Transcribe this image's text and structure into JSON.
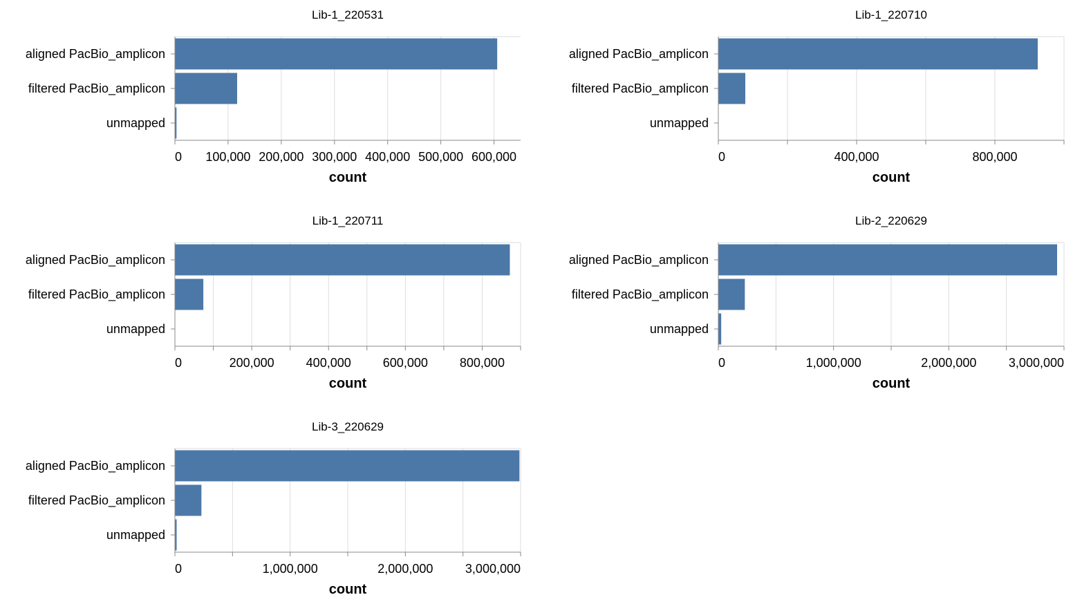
{
  "chart_data": [
    {
      "type": "bar",
      "orientation": "horizontal",
      "title": "Lib-1_220531",
      "categories": [
        "aligned PacBio_amplicon",
        "filtered PacBio_amplicon",
        "unmapped"
      ],
      "values": [
        606000,
        117000,
        3000
      ],
      "xlabel": "count",
      "xlim": [
        0,
        650000
      ],
      "xticks": [
        0,
        100000,
        200000,
        300000,
        400000,
        500000,
        600000
      ],
      "xtick_labels": [
        "0",
        "100,000",
        "200,000",
        "300,000",
        "400,000",
        "500,000",
        "600,000"
      ],
      "grid": true,
      "color": "#4c78a8"
    },
    {
      "type": "bar",
      "orientation": "horizontal",
      "title": "Lib-1_220710",
      "categories": [
        "aligned PacBio_amplicon",
        "filtered PacBio_amplicon",
        "unmapped"
      ],
      "values": [
        924000,
        78000,
        0
      ],
      "xlabel": "count",
      "xlim": [
        0,
        1000000
      ],
      "xticks": [
        0,
        200000,
        400000,
        600000,
        800000,
        1000000
      ],
      "xtick_labels": [
        "0",
        "",
        "400,000",
        "",
        "800,000",
        ""
      ],
      "grid": true,
      "color": "#4c78a8"
    },
    {
      "type": "bar",
      "orientation": "horizontal",
      "title": "Lib-1_220711",
      "categories": [
        "aligned PacBio_amplicon",
        "filtered PacBio_amplicon",
        "unmapped"
      ],
      "values": [
        872000,
        74000,
        0
      ],
      "xlabel": "count",
      "xlim": [
        0,
        900000
      ],
      "xticks": [
        0,
        100000,
        200000,
        300000,
        400000,
        500000,
        600000,
        700000,
        800000,
        900000
      ],
      "xtick_labels": [
        "0",
        "",
        "200,000",
        "",
        "400,000",
        "",
        "600,000",
        "",
        "800,000",
        ""
      ],
      "grid": true,
      "color": "#4c78a8"
    },
    {
      "type": "bar",
      "orientation": "horizontal",
      "title": "Lib-2_220629",
      "categories": [
        "aligned PacBio_amplicon",
        "filtered PacBio_amplicon",
        "unmapped"
      ],
      "values": [
        2940000,
        230000,
        25000
      ],
      "xlabel": "count",
      "xlim": [
        0,
        3000000
      ],
      "xticks": [
        0,
        500000,
        1000000,
        1500000,
        2000000,
        2500000,
        3000000
      ],
      "xtick_labels": [
        "0",
        "",
        "1,000,000",
        "",
        "2,000,000",
        "",
        "3,000,000"
      ],
      "grid": true,
      "color": "#4c78a8"
    },
    {
      "type": "bar",
      "orientation": "horizontal",
      "title": "Lib-3_220629",
      "categories": [
        "aligned PacBio_amplicon",
        "filtered PacBio_amplicon",
        "unmapped"
      ],
      "values": [
        2990000,
        230000,
        15000
      ],
      "xlabel": "count",
      "xlim": [
        0,
        3000000
      ],
      "xticks": [
        0,
        500000,
        1000000,
        1500000,
        2000000,
        2500000,
        3000000
      ],
      "xtick_labels": [
        "0",
        "",
        "1,000,000",
        "",
        "2,000,000",
        "",
        "3,000,000"
      ],
      "grid": true,
      "color": "#4c78a8"
    }
  ]
}
